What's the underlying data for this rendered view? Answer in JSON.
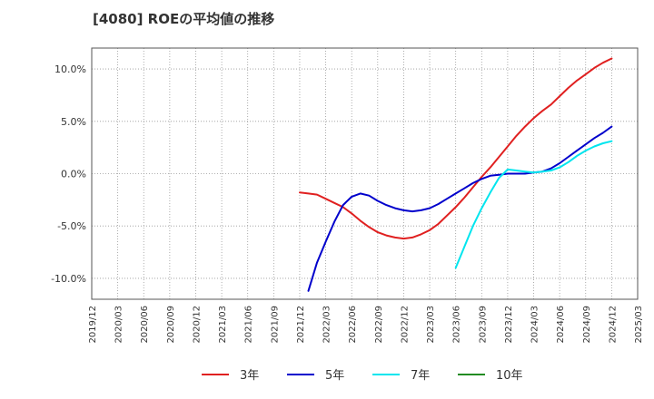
{
  "chart_data": {
    "type": "line",
    "title": "[4080]  ROEの平均値の推移",
    "xlabel": "",
    "ylabel": "",
    "ylim": [
      -12,
      12
    ],
    "y_ticks": [
      {
        "value": 10,
        "label": "10.0%"
      },
      {
        "value": 5,
        "label": "5.0%"
      },
      {
        "value": 0,
        "label": "0.0%"
      },
      {
        "value": -5,
        "label": "-5.0%"
      },
      {
        "value": -10,
        "label": "-10.0%"
      }
    ],
    "x_ticks": [
      "2019/12",
      "2020/03",
      "2020/06",
      "2020/09",
      "2020/12",
      "2021/03",
      "2021/06",
      "2021/09",
      "2021/12",
      "2022/03",
      "2022/06",
      "2022/09",
      "2022/12",
      "2023/03",
      "2023/06",
      "2023/09",
      "2023/12",
      "2024/03",
      "2024/06",
      "2024/09",
      "2024/12",
      "2025/03"
    ],
    "grid": true,
    "legend_position": "bottom",
    "series": [
      {
        "name": "3年",
        "color": "#e02020",
        "values": [
          -1.8,
          -1.9,
          -2.0,
          -2.4,
          -2.8,
          -3.2,
          -3.8,
          -4.5,
          -5.1,
          -5.6,
          -5.9,
          -6.1,
          -6.2,
          -6.1,
          -5.8,
          -5.4,
          -4.8,
          -4.0,
          -3.2,
          -2.3,
          -1.3,
          -0.3,
          0.6,
          1.6,
          2.6,
          3.6,
          4.5,
          5.3,
          6.0,
          6.6,
          7.4,
          8.2,
          8.9,
          9.5,
          10.1,
          10.6,
          11.0
        ]
      },
      {
        "name": "5年",
        "color": "#0000cc",
        "values": [
          null,
          null,
          null,
          null,
          null,
          null,
          null,
          null,
          null,
          null,
          null,
          -11.2,
          -8.5,
          -6.5,
          -4.6,
          -3.0,
          -2.2,
          -1.9,
          -2.1,
          -2.6,
          -3.0,
          -3.3,
          -3.5,
          -3.6,
          -3.5,
          -3.3,
          -2.9,
          -2.4,
          -1.9,
          -1.4,
          -0.9,
          -0.5,
          -0.2,
          -0.1,
          0.0,
          0.0,
          0.0,
          0.1,
          0.2,
          0.5,
          1.0,
          1.6,
          2.2,
          2.8,
          3.4,
          3.9,
          4.5
        ]
      },
      {
        "name": "7年",
        "color": "#00e5ee",
        "values": [
          -9.0,
          -7.0,
          -5.0,
          -3.3,
          -1.8,
          -0.4,
          0.4,
          0.3,
          0.2,
          0.1,
          0.2,
          0.3,
          0.6,
          1.1,
          1.7,
          2.2,
          2.6,
          2.9,
          3.1
        ]
      },
      {
        "name": "10年",
        "color": "#228b22",
        "values": []
      }
    ]
  }
}
